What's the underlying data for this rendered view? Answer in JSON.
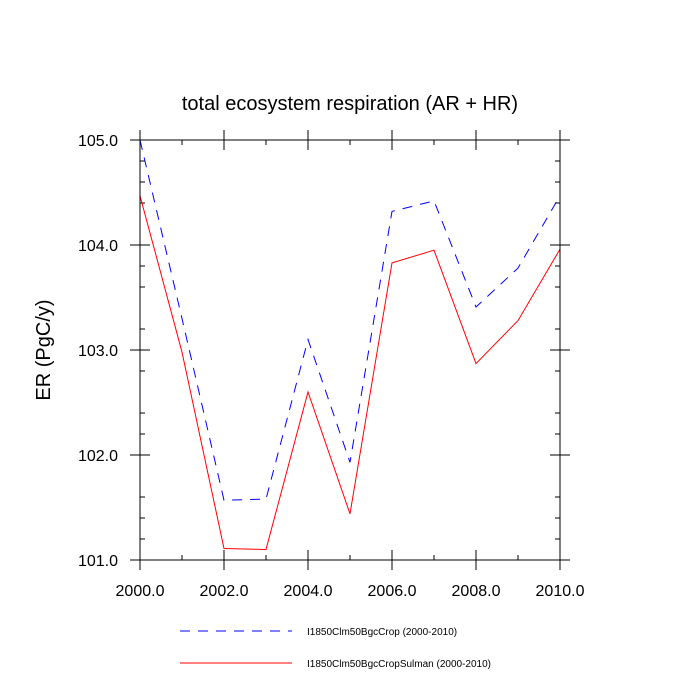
{
  "chart_data": {
    "type": "line",
    "title": "total ecosystem respiration (AR + HR)",
    "xlabel": "",
    "ylabel": "ER  (PgC/y)",
    "xlim": [
      2000,
      2010
    ],
    "ylim": [
      101,
      105
    ],
    "x_ticks": [
      2000,
      2002,
      2004,
      2006,
      2008,
      2010
    ],
    "x_tick_labels": [
      "2000.0",
      "2002.0",
      "2004.0",
      "2006.0",
      "2008.0",
      "2010.0"
    ],
    "y_ticks": [
      101,
      102,
      103,
      104,
      105
    ],
    "y_tick_labels": [
      "101.0",
      "102.0",
      "103.0",
      "104.0",
      "105.0"
    ],
    "grid": false,
    "legend_position": "bottom",
    "x": [
      2000,
      2001,
      2002,
      2003,
      2004,
      2005,
      2006,
      2007,
      2008,
      2009,
      2010
    ],
    "series": [
      {
        "name": "I1850Clm50BgcCrop (2000-2010)",
        "color": "#0000ff",
        "dash": "dashed",
        "values": [
          105.0,
          103.3,
          101.57,
          101.58,
          103.1,
          101.93,
          104.32,
          104.42,
          103.41,
          103.78,
          104.47
        ]
      },
      {
        "name": "I1850Clm50BgcCropSulman (2000-2010)",
        "color": "#ff0000",
        "dash": "solid",
        "values": [
          104.47,
          102.98,
          101.11,
          101.1,
          102.6,
          101.44,
          103.83,
          103.95,
          102.87,
          103.28,
          103.96
        ]
      }
    ]
  }
}
